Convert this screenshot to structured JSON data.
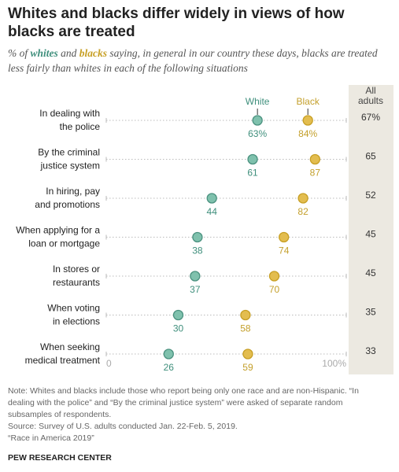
{
  "chart_data": {
    "type": "dot",
    "title": "Whites and blacks differ widely in views of how blacks are treated",
    "subtitle": [
      "% of ",
      "whites",
      " and ",
      "blacks",
      " saying, in general in our country these days, blacks are treated less fairly than whites in each of the following situations"
    ],
    "categories": [
      [
        "In dealing with",
        "the police"
      ],
      [
        "By the criminal",
        "justice system"
      ],
      [
        "In hiring, pay",
        "and promotions"
      ],
      [
        "When applying for a",
        "loan or mortgage"
      ],
      [
        "In stores or",
        "restaurants"
      ],
      [
        "When voting",
        "in elections"
      ],
      [
        "When seeking",
        "medical treatment"
      ]
    ],
    "series": [
      {
        "name": "White",
        "color": "#7fc1ad",
        "values": [
          63,
          61,
          44,
          38,
          37,
          30,
          26
        ],
        "value_labels": [
          "63%",
          "61",
          "44",
          "38",
          "37",
          "30",
          "26"
        ]
      },
      {
        "name": "Black",
        "color": "#e3bd4f",
        "values": [
          84,
          87,
          82,
          74,
          70,
          58,
          59
        ],
        "value_labels": [
          "84%",
          "87",
          "82",
          "74",
          "70",
          "58",
          "59"
        ]
      }
    ],
    "all_adults": {
      "name": [
        "All",
        "adults"
      ],
      "values": [
        67,
        65,
        52,
        45,
        45,
        35,
        33
      ],
      "value_labels": [
        "67%",
        "65",
        "52",
        "45",
        "45",
        "35",
        "33"
      ]
    },
    "xlim": [
      0,
      100
    ],
    "xticks": [
      0,
      {
        "value": 100,
        "label": "100%"
      }
    ],
    "notes": [
      "Note: Whites and blacks include those who report being only one race and are non-Hispanic. “In dealing with the police” and “By the criminal justice system” were asked of separate random subsamples of respondents.",
      "Source: Survey of U.S. adults conducted Jan. 22-Feb. 5, 2019.",
      "“Race in America 2019”"
    ],
    "source": "PEW RESEARCH CENTER"
  }
}
